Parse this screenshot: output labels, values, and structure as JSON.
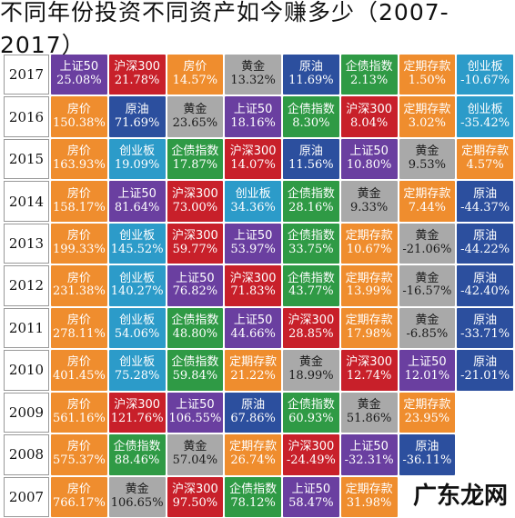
{
  "title": "不同年份投资不同资产如今赚多少（2007-2017）",
  "watermark": "广东龙网",
  "colors": {
    "房价": "#ef8d2e",
    "沪深300": "#c8202a",
    "上证50": "#6a3fa0",
    "黄金": "#a9a9a9",
    "原油": "#2c4f9e",
    "企债指数": "#2f9a45",
    "定期存款": "#ef8d2e",
    "创业板": "#2c9bc9"
  },
  "chart_data": {
    "type": "table",
    "title": "不同年份投资不同资产如今赚多少（2007-2017）",
    "rows": [
      {
        "year": "2017",
        "cells": [
          {
            "asset": "上证50",
            "value": "25.08%",
            "color": "#6a3fa0"
          },
          {
            "asset": "沪深300",
            "value": "21.78%",
            "color": "#c8202a"
          },
          {
            "asset": "房价",
            "value": "14.57%",
            "color": "#ef8d2e"
          },
          {
            "asset": "黄金",
            "value": "13.32%",
            "color": "#a9a9a9"
          },
          {
            "asset": "原油",
            "value": "11.69%",
            "color": "#2c4f9e"
          },
          {
            "asset": "企债指数",
            "value": "2.13%",
            "color": "#2f9a45"
          },
          {
            "asset": "定期存款",
            "value": "1.50%",
            "color": "#ef8d2e"
          },
          {
            "asset": "创业板",
            "value": "-10.67%",
            "color": "#2c9bc9"
          }
        ]
      },
      {
        "year": "2016",
        "cells": [
          {
            "asset": "房价",
            "value": "150.38%",
            "color": "#ef8d2e"
          },
          {
            "asset": "原油",
            "value": "71.69%",
            "color": "#2c4f9e"
          },
          {
            "asset": "黄金",
            "value": "23.65%",
            "color": "#a9a9a9"
          },
          {
            "asset": "上证50",
            "value": "18.16%",
            "color": "#6a3fa0"
          },
          {
            "asset": "企债指数",
            "value": "8.30%",
            "color": "#2f9a45"
          },
          {
            "asset": "沪深300",
            "value": "8.04%",
            "color": "#c8202a"
          },
          {
            "asset": "定期存款",
            "value": "3.02%",
            "color": "#ef8d2e"
          },
          {
            "asset": "创业板",
            "value": "-35.42%",
            "color": "#2c9bc9"
          }
        ]
      },
      {
        "year": "2015",
        "cells": [
          {
            "asset": "房价",
            "value": "163.93%",
            "color": "#ef8d2e"
          },
          {
            "asset": "创业板",
            "value": "19.09%",
            "color": "#2c9bc9"
          },
          {
            "asset": "企债指数",
            "value": "17.87%",
            "color": "#2f9a45"
          },
          {
            "asset": "沪深300",
            "value": "14.07%",
            "color": "#c8202a"
          },
          {
            "asset": "原油",
            "value": "11.56%",
            "color": "#2c4f9e"
          },
          {
            "asset": "上证50",
            "value": "10.80%",
            "color": "#6a3fa0"
          },
          {
            "asset": "黄金",
            "value": "9.53%",
            "color": "#a9a9a9"
          },
          {
            "asset": "定期存款",
            "value": "4.57%",
            "color": "#ef8d2e"
          }
        ]
      },
      {
        "year": "2014",
        "cells": [
          {
            "asset": "房价",
            "value": "158.17%",
            "color": "#ef8d2e"
          },
          {
            "asset": "上证50",
            "value": "81.64%",
            "color": "#6a3fa0"
          },
          {
            "asset": "沪深300",
            "value": "73.00%",
            "color": "#c8202a"
          },
          {
            "asset": "创业板",
            "value": "34.36%",
            "color": "#2c9bc9"
          },
          {
            "asset": "企债指数",
            "value": "28.16%",
            "color": "#2f9a45"
          },
          {
            "asset": "黄金",
            "value": "9.33%",
            "color": "#a9a9a9"
          },
          {
            "asset": "定期存款",
            "value": "7.44%",
            "color": "#ef8d2e"
          },
          {
            "asset": "原油",
            "value": "-44.37%",
            "color": "#2c4f9e"
          }
        ]
      },
      {
        "year": "2013",
        "cells": [
          {
            "asset": "房价",
            "value": "199.33%",
            "color": "#ef8d2e"
          },
          {
            "asset": "创业板",
            "value": "145.52%",
            "color": "#2c9bc9"
          },
          {
            "asset": "沪深300",
            "value": "59.77%",
            "color": "#c8202a"
          },
          {
            "asset": "上证50",
            "value": "53.97%",
            "color": "#6a3fa0"
          },
          {
            "asset": "企债指数",
            "value": "33.75%",
            "color": "#2f9a45"
          },
          {
            "asset": "定期存款",
            "value": "10.67%",
            "color": "#ef8d2e"
          },
          {
            "asset": "黄金",
            "value": "-21.06%",
            "color": "#a9a9a9"
          },
          {
            "asset": "原油",
            "value": "-44.22%",
            "color": "#2c4f9e"
          }
        ]
      },
      {
        "year": "2012",
        "cells": [
          {
            "asset": "房价",
            "value": "231.38%",
            "color": "#ef8d2e"
          },
          {
            "asset": "创业板",
            "value": "140.27%",
            "color": "#2c9bc9"
          },
          {
            "asset": "上证50",
            "value": "76.82%",
            "color": "#6a3fa0"
          },
          {
            "asset": "沪深300",
            "value": "71.83%",
            "color": "#c8202a"
          },
          {
            "asset": "企债指数",
            "value": "43.77%",
            "color": "#2f9a45"
          },
          {
            "asset": "定期存款",
            "value": "13.99%",
            "color": "#ef8d2e"
          },
          {
            "asset": "黄金",
            "value": "-16.57%",
            "color": "#a9a9a9"
          },
          {
            "asset": "原油",
            "value": "-42.40%",
            "color": "#2c4f9e"
          }
        ]
      },
      {
        "year": "2011",
        "cells": [
          {
            "asset": "房价",
            "value": "278.11%",
            "color": "#ef8d2e"
          },
          {
            "asset": "创业板",
            "value": "54.06%",
            "color": "#2c9bc9"
          },
          {
            "asset": "企债指数",
            "value": "48.80%",
            "color": "#2f9a45"
          },
          {
            "asset": "上证50",
            "value": "44.66%",
            "color": "#6a3fa0"
          },
          {
            "asset": "沪深300",
            "value": "28.85%",
            "color": "#c8202a"
          },
          {
            "asset": "定期存款",
            "value": "17.98%",
            "color": "#ef8d2e"
          },
          {
            "asset": "黄金",
            "value": "-6.85%",
            "color": "#a9a9a9"
          },
          {
            "asset": "原油",
            "value": "-33.71%",
            "color": "#2c4f9e"
          }
        ]
      },
      {
        "year": "2010",
        "cells": [
          {
            "asset": "房价",
            "value": "401.45%",
            "color": "#ef8d2e"
          },
          {
            "asset": "创业板",
            "value": "75.28%",
            "color": "#2c9bc9"
          },
          {
            "asset": "企债指数",
            "value": "59.84%",
            "color": "#2f9a45"
          },
          {
            "asset": "定期存款",
            "value": "21.22%",
            "color": "#ef8d2e"
          },
          {
            "asset": "黄金",
            "value": "18.99%",
            "color": "#a9a9a9"
          },
          {
            "asset": "沪深300",
            "value": "12.74%",
            "color": "#c8202a"
          },
          {
            "asset": "上证50",
            "value": "12.01%",
            "color": "#6a3fa0"
          },
          {
            "asset": "原油",
            "value": "-21.01%",
            "color": "#2c4f9e"
          }
        ]
      },
      {
        "year": "2009",
        "cells": [
          {
            "asset": "房价",
            "value": "561.16%",
            "color": "#ef8d2e"
          },
          {
            "asset": "沪深300",
            "value": "121.76%",
            "color": "#c8202a"
          },
          {
            "asset": "上证50",
            "value": "106.55%",
            "color": "#6a3fa0"
          },
          {
            "asset": "原油",
            "value": "67.86%",
            "color": "#2c4f9e"
          },
          {
            "asset": "企债指数",
            "value": "60.93%",
            "color": "#2f9a45"
          },
          {
            "asset": "黄金",
            "value": "51.86%",
            "color": "#a9a9a9"
          },
          {
            "asset": "定期存款",
            "value": "23.95%",
            "color": "#ef8d2e"
          }
        ]
      },
      {
        "year": "2008",
        "cells": [
          {
            "asset": "房价",
            "value": "575.37%",
            "color": "#ef8d2e"
          },
          {
            "asset": "企债指数",
            "value": "88.46%",
            "color": "#2f9a45"
          },
          {
            "asset": "黄金",
            "value": "57.04%",
            "color": "#a9a9a9"
          },
          {
            "asset": "定期存款",
            "value": "26.74%",
            "color": "#ef8d2e"
          },
          {
            "asset": "沪深300",
            "value": "-24.49%",
            "color": "#c8202a"
          },
          {
            "asset": "上证50",
            "value": "-32.31%",
            "color": "#6a3fa0"
          },
          {
            "asset": "原油",
            "value": "-36.11%",
            "color": "#2c4f9e"
          }
        ]
      },
      {
        "year": "2007",
        "cells": [
          {
            "asset": "房价",
            "value": "766.17%",
            "color": "#ef8d2e"
          },
          {
            "asset": "黄金",
            "value": "106.65%",
            "color": "#a9a9a9"
          },
          {
            "asset": "沪深300",
            "value": "97.50%",
            "color": "#c8202a"
          },
          {
            "asset": "企债指数",
            "value": "78.12%",
            "color": "#2f9a45"
          },
          {
            "asset": "上证50",
            "value": "58.47%",
            "color": "#6a3fa0"
          },
          {
            "asset": "定期存款",
            "value": "31.98%",
            "color": "#ef8d2e"
          }
        ]
      }
    ]
  }
}
